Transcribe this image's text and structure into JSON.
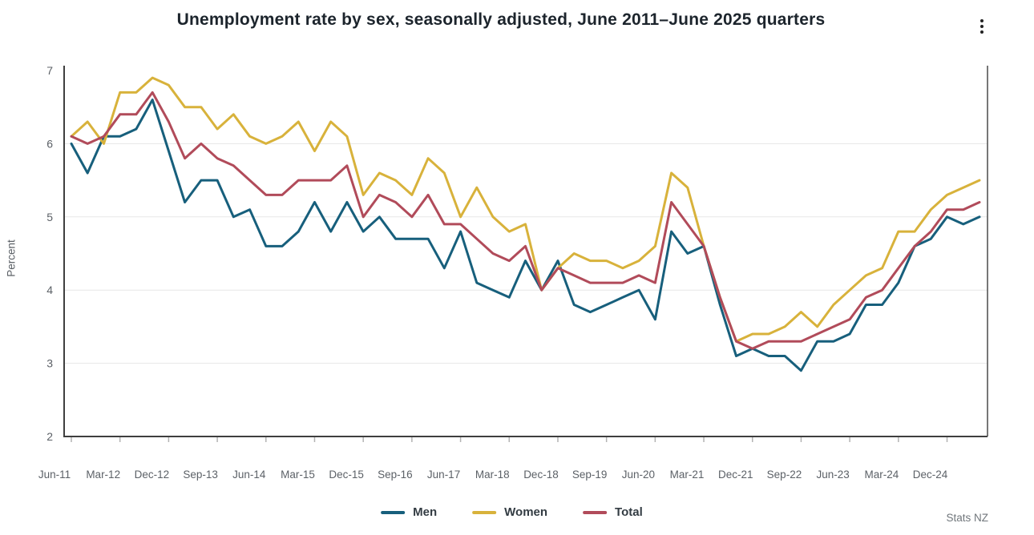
{
  "header": {
    "title": "Unemployment rate by sex, seasonally adjusted, June 2011–June 2025 quarters"
  },
  "chart_data": {
    "type": "line",
    "title": "Unemployment rate by sex, seasonally adjusted, June 2011–June 2025 quarters",
    "xlabel": "",
    "ylabel": "Percent",
    "ylim": [
      2,
      7
    ],
    "yticks": [
      2,
      3,
      4,
      5,
      6,
      7
    ],
    "grid": "horizontal",
    "legend_position": "bottom",
    "x_frequency": "quarterly",
    "x_start": "Jun-11",
    "x_end": "Jun-25",
    "x_tick_every": 3,
    "x_tick_labels": [
      "Jun-11",
      "Mar-12",
      "Dec-12",
      "Sep-13",
      "Jun-14",
      "Mar-15",
      "Dec-15",
      "Sep-16",
      "Jun-17",
      "Mar-18",
      "Dec-18",
      "Sep-19",
      "Jun-20",
      "Mar-21",
      "Dec-21",
      "Sep-22",
      "Jun-23",
      "Mar-24",
      "Dec-24"
    ],
    "series": [
      {
        "name": "Men",
        "color": "#175f7c",
        "values": [
          6.0,
          5.6,
          6.1,
          6.1,
          6.2,
          6.6,
          5.9,
          5.2,
          5.5,
          5.5,
          5.0,
          5.1,
          4.6,
          4.6,
          4.8,
          5.2,
          4.8,
          5.2,
          4.8,
          5.0,
          4.7,
          4.7,
          4.7,
          4.3,
          4.8,
          4.1,
          4.0,
          3.9,
          4.4,
          4.0,
          4.4,
          3.8,
          3.7,
          3.8,
          3.9,
          4.0,
          3.6,
          4.8,
          4.5,
          4.6,
          3.8,
          3.1,
          3.2,
          3.1,
          3.1,
          2.9,
          3.3,
          3.3,
          3.4,
          3.8,
          3.8,
          4.1,
          4.6,
          4.7,
          5.0,
          4.9,
          5.0
        ]
      },
      {
        "name": "Women",
        "color": "#d8b23b",
        "values": [
          6.1,
          6.3,
          6.0,
          6.7,
          6.7,
          6.9,
          6.8,
          6.5,
          6.5,
          6.2,
          6.4,
          6.1,
          6.0,
          6.1,
          6.3,
          5.9,
          6.3,
          6.1,
          5.3,
          5.6,
          5.5,
          5.3,
          5.8,
          5.6,
          5.0,
          5.4,
          5.0,
          4.8,
          4.9,
          4.0,
          4.3,
          4.5,
          4.4,
          4.4,
          4.3,
          4.4,
          4.6,
          5.6,
          5.4,
          4.6,
          3.9,
          3.3,
          3.4,
          3.4,
          3.5,
          3.7,
          3.5,
          3.8,
          4.0,
          4.2,
          4.3,
          4.8,
          4.8,
          5.1,
          5.3,
          5.4,
          5.5
        ]
      },
      {
        "name": "Total",
        "color": "#b14b5a",
        "values": [
          6.1,
          6.0,
          6.1,
          6.4,
          6.4,
          6.7,
          6.3,
          5.8,
          6.0,
          5.8,
          5.7,
          5.5,
          5.3,
          5.3,
          5.5,
          5.5,
          5.5,
          5.7,
          5.0,
          5.3,
          5.2,
          5.0,
          5.3,
          4.9,
          4.9,
          4.7,
          4.5,
          4.4,
          4.6,
          4.0,
          4.3,
          4.2,
          4.1,
          4.1,
          4.1,
          4.2,
          4.1,
          5.2,
          4.9,
          4.6,
          3.9,
          3.3,
          3.2,
          3.3,
          3.3,
          3.3,
          3.4,
          3.5,
          3.6,
          3.9,
          4.0,
          4.3,
          4.6,
          4.8,
          5.1,
          5.1,
          5.2
        ]
      }
    ]
  },
  "footer": {
    "source": "Stats NZ"
  }
}
